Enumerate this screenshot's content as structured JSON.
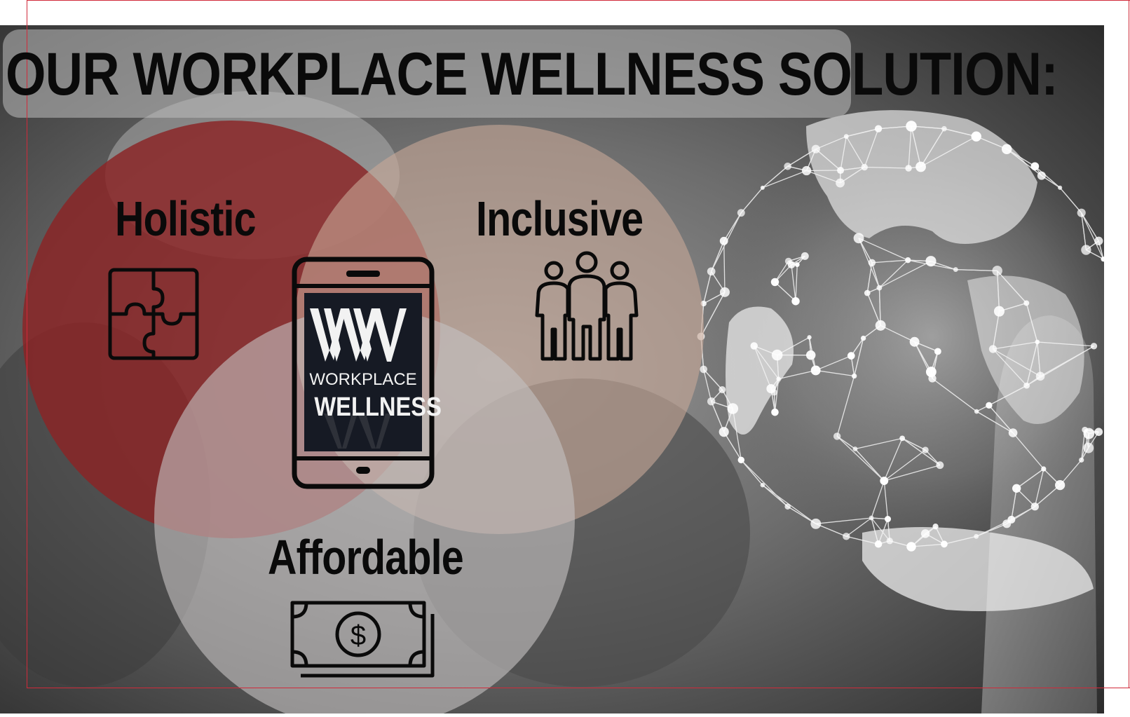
{
  "title": "OUR WORKPLACE WELLNESS SOLUTION:",
  "venn": {
    "circles": [
      {
        "label": "Holistic",
        "icon": "puzzle-icon",
        "color": "#8b2325"
      },
      {
        "label": "Inclusive",
        "icon": "people-icon",
        "color": "#b8998a"
      },
      {
        "label": "Affordable",
        "icon": "money-icon",
        "color": "#b5b0b0"
      }
    ]
  },
  "center_logo": {
    "icon": "phone-icon",
    "monogram": "WW",
    "line1": "WORKPLACE",
    "line2": "WELLNESS"
  },
  "background": {
    "icon": "globe-network-icon"
  },
  "colors": {
    "accent_red": "#d12a3a",
    "holistic_circle": "#8b2325",
    "inclusive_circle": "#b8998a",
    "affordable_circle": "#b5b0b0",
    "text": "#0a0a0a"
  }
}
